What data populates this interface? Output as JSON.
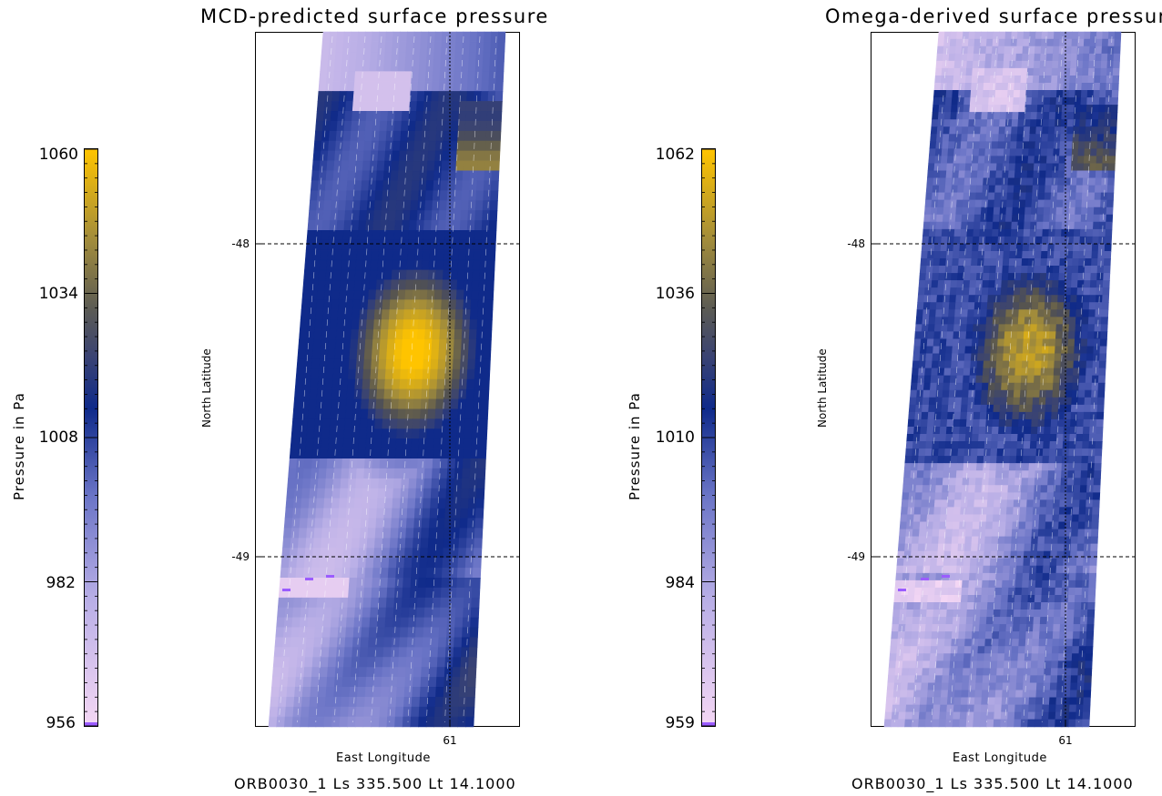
{
  "colors": {
    "low": "#f3d6f4",
    "mid_low": "#8c8fd4",
    "mid": "#0f2a8a",
    "mid_high": "#535251",
    "high": "#ffc400",
    "min_mark": "#9b5cff"
  },
  "chart_data": [
    {
      "type": "heatmap",
      "title": "MCD-predicted surface pressure",
      "colorbar_label": "Pressure in Pa",
      "colorbar_ticks": [
        "1060",
        "1034",
        "1008",
        "982",
        "956"
      ],
      "vmin": 956,
      "vmax": 1060,
      "xlabel": "East Longitude",
      "ylabel": "North Latitude",
      "x_ticks": [
        "61"
      ],
      "y_ticks": [
        "-48",
        "-49"
      ],
      "caption": "ORB0030_1 Ls 335.500 Lt 14.1000",
      "grid": "dashed lines at lat -48, -49 and lon 61"
    },
    {
      "type": "heatmap",
      "title": "Omega-derived surface pressur",
      "colorbar_label": "Pressure in Pa",
      "colorbar_ticks": [
        "1062",
        "1036",
        "1010",
        "984",
        "959"
      ],
      "vmin": 959,
      "vmax": 1062,
      "xlabel": "East Longitude",
      "ylabel": "North Latitude",
      "x_ticks": [
        "61"
      ],
      "y_ticks": [
        "-48",
        "-49"
      ],
      "caption": "ORB0030_1 Ls 335.500 Lt 14.1000",
      "grid": "dashed lines at lat -48, -49 and lon 61"
    }
  ]
}
